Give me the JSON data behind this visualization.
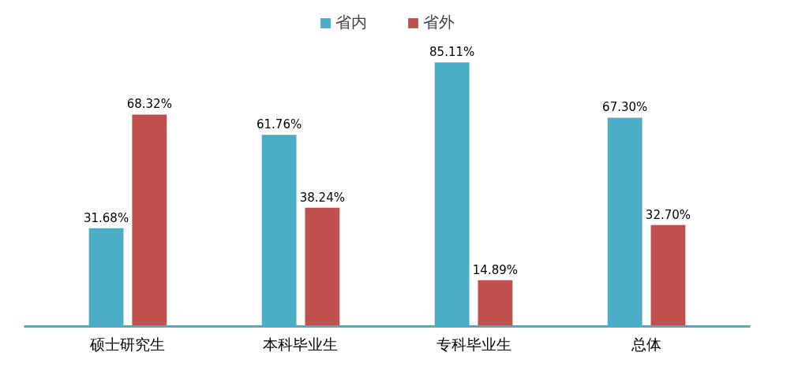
{
  "chart_data": {
    "type": "bar",
    "categories": [
      "硕士研究生",
      "本科毕业生",
      "专科毕业生",
      "总体"
    ],
    "series": [
      {
        "name": "省内",
        "color": "#4bacc6",
        "values": [
          31.68,
          61.76,
          85.11,
          67.3
        ],
        "value_labels": [
          "31.68%",
          "61.76%",
          "85.11%",
          "67.30%"
        ]
      },
      {
        "name": "省外",
        "color": "#c0504d",
        "values": [
          68.32,
          38.24,
          14.89,
          32.7
        ],
        "value_labels": [
          "68.32%",
          "38.24%",
          "14.89%",
          "32.70%"
        ]
      }
    ],
    "legend": "top"
  }
}
